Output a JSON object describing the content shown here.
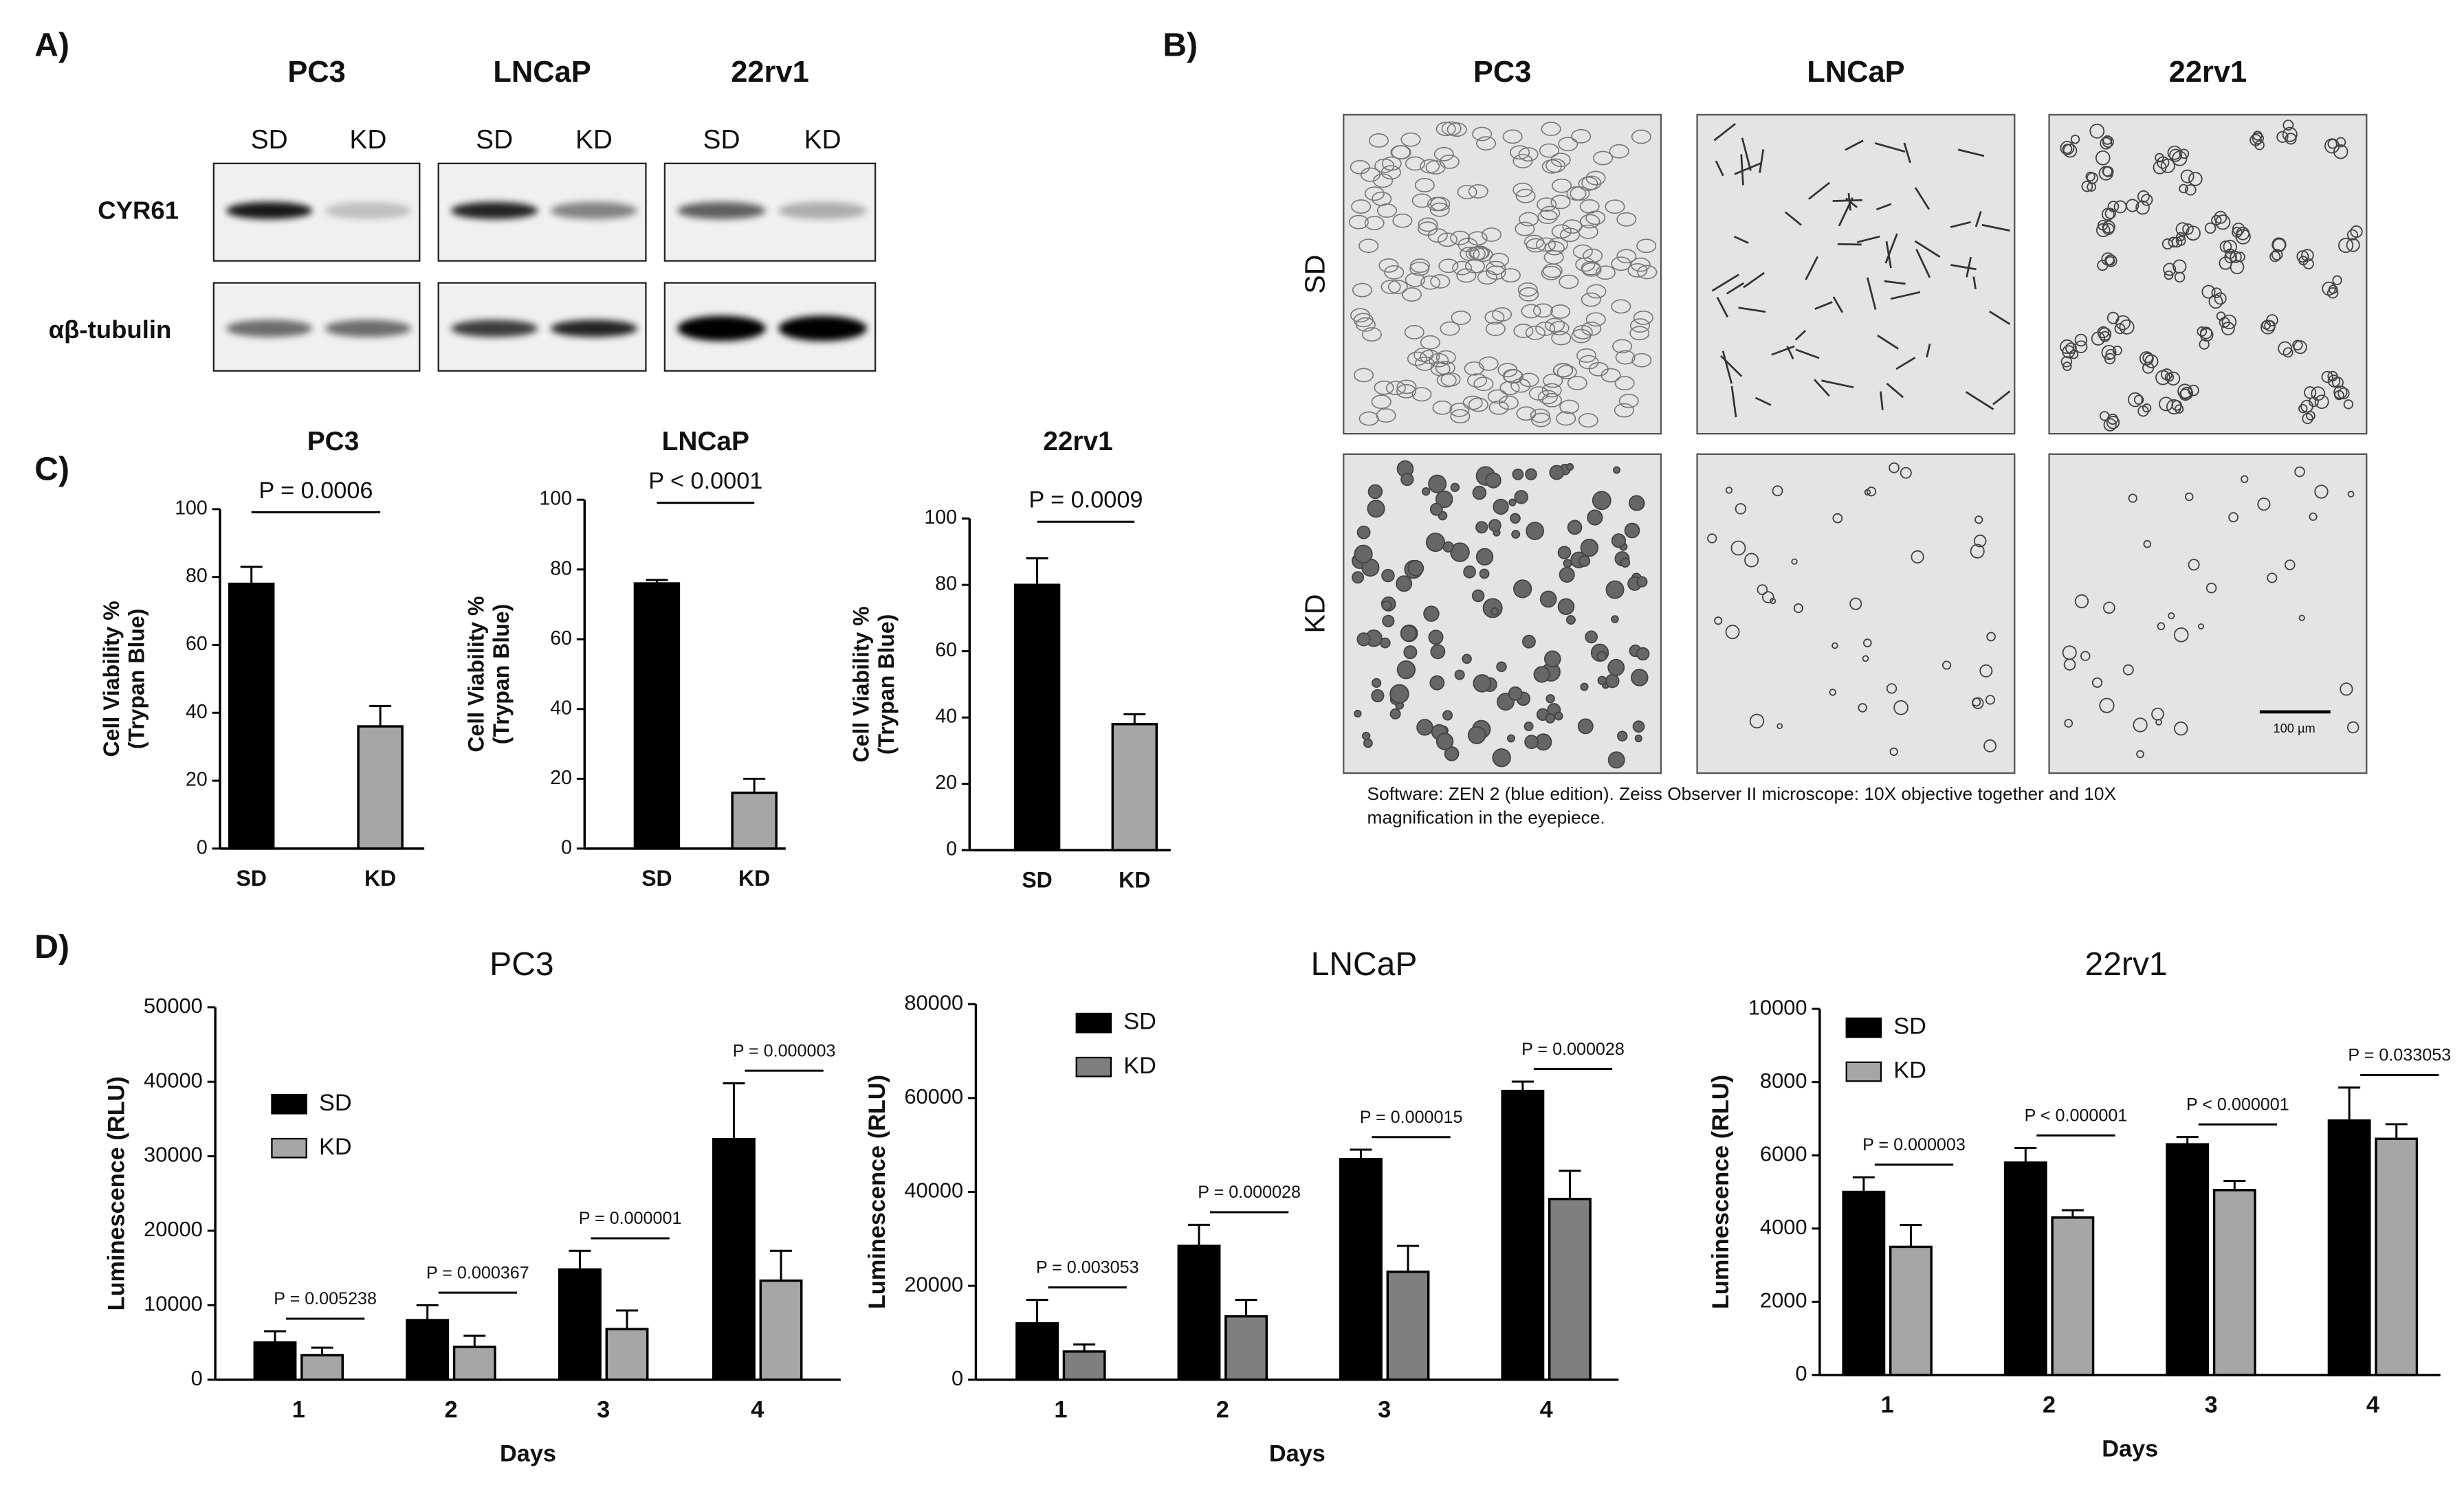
{
  "panel_labels": [
    "A)",
    "B)",
    "C)",
    "D)"
  ],
  "western_blot": {
    "cell_lines": [
      "PC3",
      "LNCaP",
      "22rv1"
    ],
    "lanes": [
      "SD",
      "KD"
    ],
    "proteins": [
      "CYR61",
      "αβ-tubulin"
    ]
  },
  "microscopy": {
    "cell_lines": [
      "PC3",
      "LNCaP",
      "22rv1"
    ],
    "conditions": [
      "SD",
      "KD"
    ],
    "scale_bar": "100 µm",
    "caption": [
      "Software: ZEN 2 (blue edition). Zeiss Observer II microscope: 10X objective together and 10X",
      "magnification in the eyepiece."
    ]
  },
  "chart_data": [
    {
      "type": "bar",
      "title": "PC3",
      "ylabel": [
        "Cell Viability %",
        "(Trypan Blue)"
      ],
      "categories": [
        "SD",
        "KD"
      ],
      "values": [
        78,
        36
      ],
      "errors": [
        5,
        6
      ],
      "colors": [
        "#000000",
        "#a6a6a6"
      ],
      "ylim": [
        0,
        100
      ],
      "yticks": [
        0,
        20,
        40,
        60,
        80,
        100
      ],
      "annotation": "P = 0.0006"
    },
    {
      "type": "bar",
      "title": "LNCaP",
      "ylabel": [
        "Cell Viability %",
        "(Trypan Blue)"
      ],
      "categories": [
        "SD",
        "KD"
      ],
      "values": [
        76,
        16
      ],
      "errors": [
        1,
        4
      ],
      "colors": [
        "#000000",
        "#a6a6a6"
      ],
      "ylim": [
        0,
        100
      ],
      "yticks": [
        0,
        20,
        40,
        60,
        80,
        100
      ],
      "annotation": "P < 0.0001"
    },
    {
      "type": "bar",
      "title": "22rv1",
      "ylabel": [
        "Cell Viability %",
        "(Trypan Blue)"
      ],
      "categories": [
        "SD",
        "KD"
      ],
      "values": [
        80,
        38
      ],
      "errors": [
        8,
        3
      ],
      "colors": [
        "#000000",
        "#a6a6a6"
      ],
      "ylim": [
        0,
        100
      ],
      "yticks": [
        0,
        20,
        40,
        60,
        80,
        100
      ],
      "annotation": "P = 0.0009"
    },
    {
      "type": "grouped_bar",
      "title": "PC3",
      "xlabel": "Days",
      "ylabel": "Luminescence (RLU)",
      "categories": [
        "1",
        "2",
        "3",
        "4"
      ],
      "series": [
        {
          "name": "SD",
          "color": "#000000",
          "values": [
            5000,
            8000,
            14800,
            32300
          ],
          "errors": [
            1500,
            2000,
            2500,
            7500
          ]
        },
        {
          "name": "KD",
          "color": "#a6a6a6",
          "values": [
            3300,
            4400,
            6800,
            13300
          ],
          "errors": [
            1000,
            1500,
            2500,
            4000
          ]
        }
      ],
      "ylim": [
        0,
        50000
      ],
      "yticks": [
        0,
        10000,
        20000,
        30000,
        40000,
        50000
      ],
      "annotations": [
        "P = 0.005238",
        "P = 0.000367",
        "P = 0.000001",
        "P = 0.000003"
      ],
      "legend": "center left"
    },
    {
      "type": "grouped_bar",
      "title": "LNCaP",
      "xlabel": "Days",
      "ylabel": "Luminescence (RLU)",
      "categories": [
        "1",
        "2",
        "3",
        "4"
      ],
      "series": [
        {
          "name": "SD",
          "color": "#000000",
          "values": [
            12000,
            28500,
            47000,
            61500
          ],
          "errors": [
            5000,
            4500,
            2000,
            2000
          ]
        },
        {
          "name": "KD",
          "color": "#7f7f7f",
          "values": [
            6000,
            13500,
            23000,
            38500
          ],
          "errors": [
            1500,
            3500,
            5500,
            6000
          ]
        }
      ],
      "ylim": [
        0,
        80000
      ],
      "yticks": [
        0,
        20000,
        40000,
        60000,
        80000
      ],
      "annotations": [
        "P = 0.003053",
        "P = 0.000028",
        "P = 0.000015",
        "P = 0.000028"
      ],
      "legend": "upper left"
    },
    {
      "type": "grouped_bar",
      "title": "22rv1",
      "xlabel": "Days",
      "ylabel": "Luminescence (RLU)",
      "categories": [
        "1",
        "2",
        "3",
        "4"
      ],
      "series": [
        {
          "name": "SD",
          "color": "#000000",
          "values": [
            5000,
            5800,
            6300,
            6950
          ],
          "errors": [
            400,
            400,
            200,
            900
          ]
        },
        {
          "name": "KD",
          "color": "#a6a6a6",
          "values": [
            3500,
            4300,
            5050,
            6450
          ],
          "errors": [
            600,
            200,
            250,
            400
          ]
        }
      ],
      "ylim": [
        0,
        10000
      ],
      "yticks": [
        0,
        2000,
        4000,
        6000,
        8000,
        10000
      ],
      "annotations": [
        "P = 0.000003",
        "P < 0.000001",
        "P < 0.000001",
        "P = 0.033053"
      ],
      "legend": "upper left"
    }
  ]
}
